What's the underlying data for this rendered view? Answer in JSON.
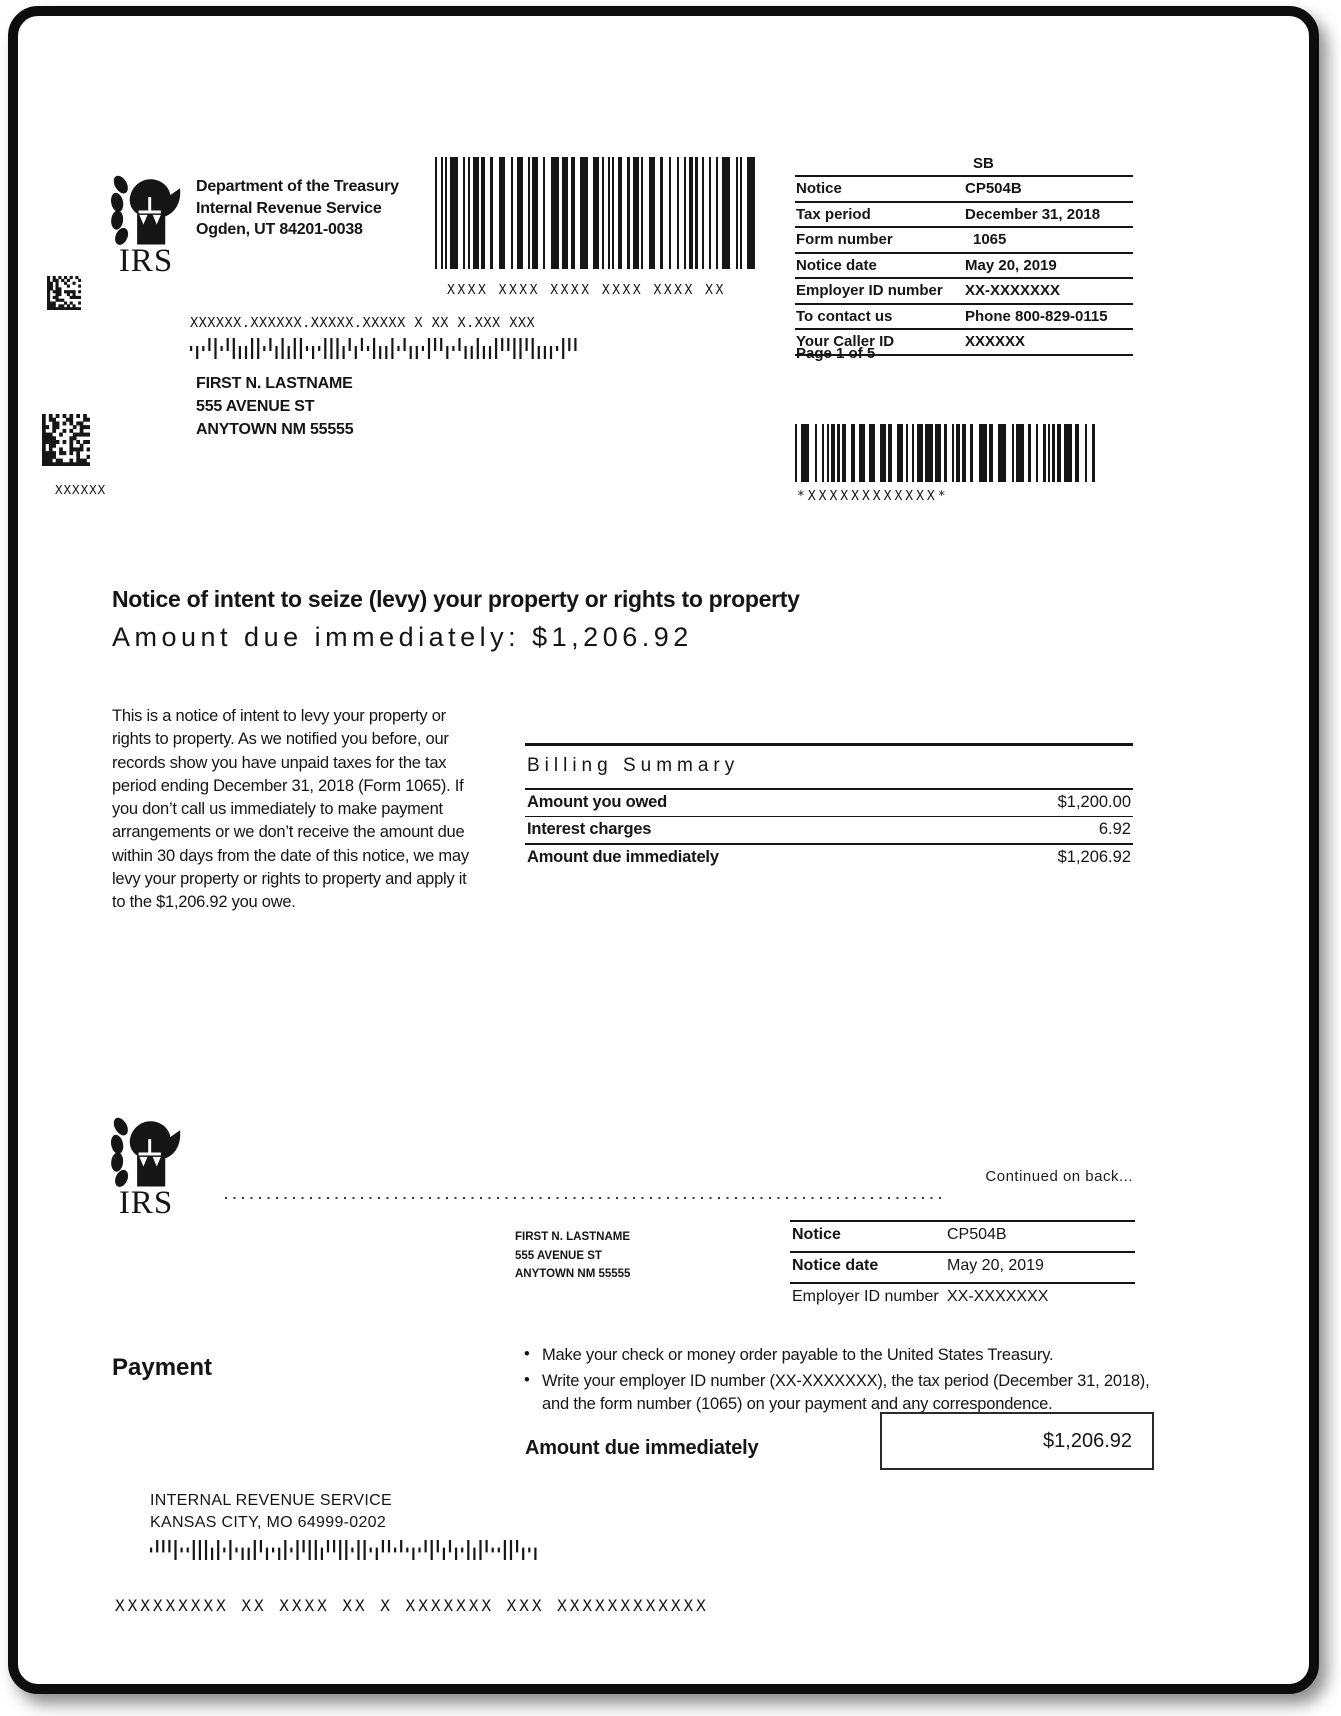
{
  "colors": {
    "ink": "#151515",
    "paper": "#ffffff"
  },
  "page": {
    "header": {
      "agency": {
        "logo_text": "IRS",
        "line1": "Department of the Treasury",
        "line2": "Internal Revenue Service",
        "line3": "Ogden, UT  84201-0038"
      },
      "barcode_caption": "XXXX XXXX XXXX XXXX XXXX XX",
      "info_table": {
        "corner_label": "SB",
        "rows": [
          {
            "label": "Notice",
            "value": "CP504B"
          },
          {
            "label": "Tax period",
            "value": "December 31, 2018"
          },
          {
            "label": "Form number",
            "value": "1065"
          },
          {
            "label": "Notice date",
            "value": "May 20, 2019"
          },
          {
            "label": "Employer ID number",
            "value": "XX-XXXXXXX"
          },
          {
            "label": "To contact us",
            "value": "Phone 800-829-0115"
          },
          {
            "label": "Your Caller ID",
            "value": "XXXXXX"
          }
        ],
        "page_indicator": "Page 1 of 5"
      },
      "mail_code_line": "XXXXXX.XXXXXX.XXXXX.XXXXX X XX X.XXX XXX",
      "recipient": {
        "name": "FIRST N. LASTNAME",
        "street": "555 AVENUE ST",
        "city": "ANYTOWN NM 55555"
      },
      "left_code": "XXXXXX",
      "right_barcode_caption": "*XXXXXXXXXXXX*"
    },
    "notice_body": {
      "title": "Notice of intent to seize (levy) your property or rights to property",
      "amount_heading": "Amount due immediately: $1,206.92",
      "paragraph": "This is a notice of intent to levy your property or rights to property. As we notified you before, our records show you have unpaid taxes for the tax period ending December 31, 2018 (Form 1065).  If you don’t call us immediately to make payment arrangements or we don’t receive the amount due within 30 days from the date of this notice, we may levy your property or rights to property and apply it to the $1,206.92 you owe.",
      "billing_summary": {
        "title": "Billing Summary",
        "rows": [
          {
            "label": "Amount you owed",
            "value": "$1,200.00"
          },
          {
            "label": "Interest charges",
            "value": "6.92"
          },
          {
            "label": "Amount due immediately",
            "value": "$1,206.92"
          }
        ]
      },
      "continued_note": "Continued on back..."
    },
    "payment_stub": {
      "logo_text": "IRS",
      "recipient": {
        "name": "FIRST N. LASTNAME",
        "street": "555 AVENUE ST",
        "city": "ANYTOWN NM 55555"
      },
      "info_table": {
        "rows": [
          {
            "label": "Notice",
            "value": "CP504B"
          },
          {
            "label": "Notice date",
            "value": "May 20, 2019"
          },
          {
            "label": "Employer ID number",
            "value": "XX-XXXXXXX"
          }
        ]
      },
      "section_title": "Payment",
      "bullet_glyph": "•",
      "instructions": [
        "Make your check or money order payable to the United States Treasury.",
        "Write your employer ID number (XX-XXXXXXX), the tax period (December 31, 2018), and the form number (1065) on your payment and any correspondence."
      ],
      "amount_due_label": "Amount due immediately",
      "amount_due_value": "$1,206.92",
      "remit_address": {
        "line1": "INTERNAL REVENUE SERVICE",
        "line2": "KANSAS CITY, MO 64999-0202"
      },
      "bottom_code": "XXXXXXXXX XX XXXX XX X XXXXXXX XXX XXXXXXXXXXXX"
    }
  }
}
